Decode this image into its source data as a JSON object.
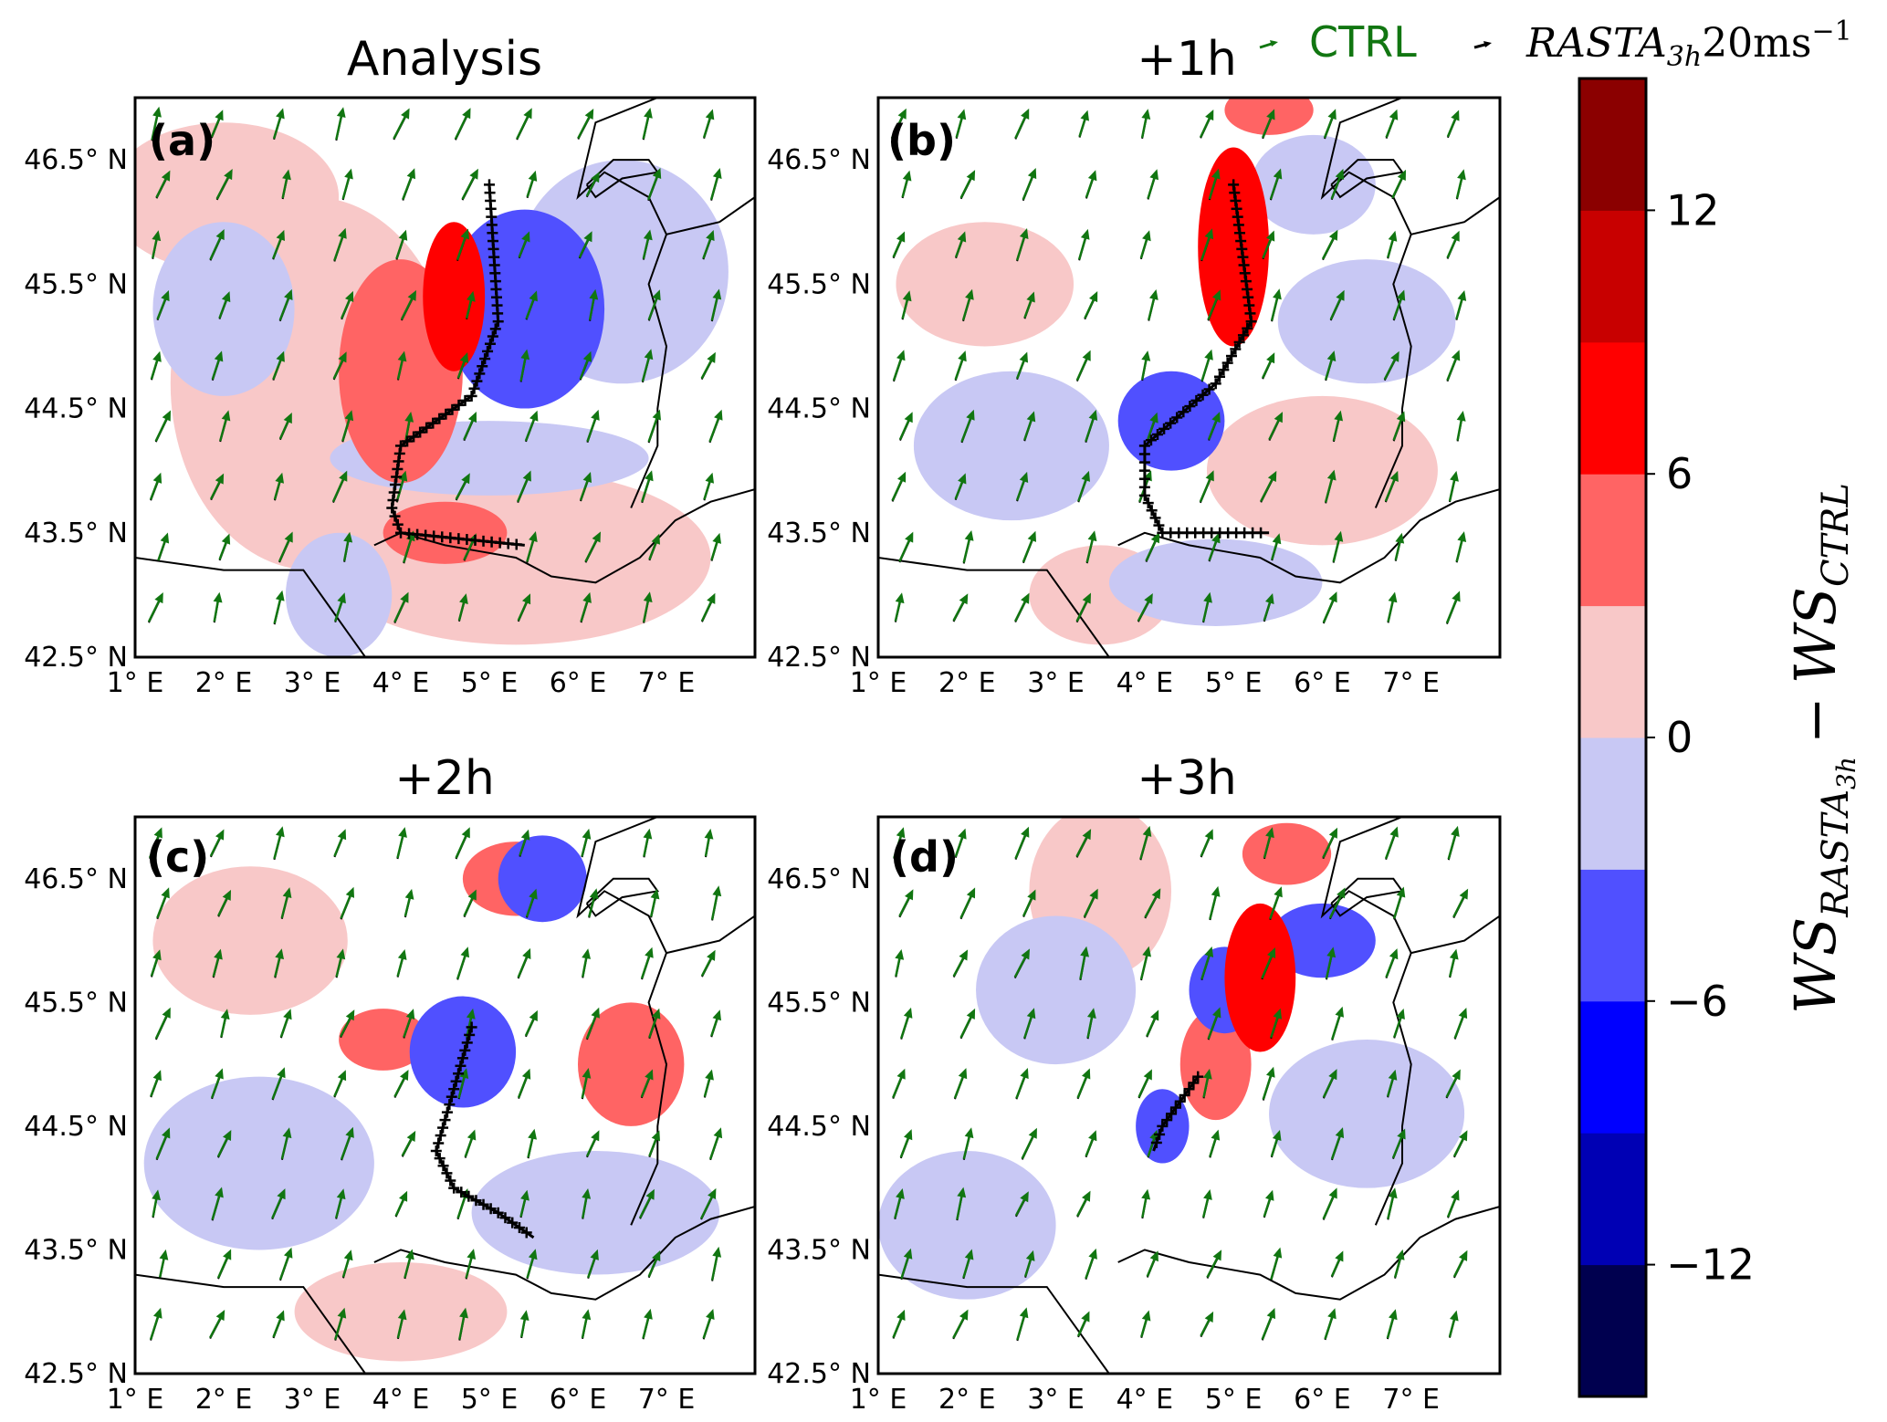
{
  "chart_data": [
    {
      "type": "heatmap",
      "panel_label": "(a)",
      "title": "Analysis",
      "map_extent": {
        "lon": [
          1,
          8
        ],
        "lat": [
          42.5,
          47
        ]
      },
      "field": "WS_RASTA3h - WS_CTRL",
      "regions": [
        {
          "lon": 3.0,
          "lat": 44.7,
          "rx": 1.6,
          "ry": 1.5,
          "value": 1.5
        },
        {
          "lon": 5.3,
          "lat": 43.3,
          "rx": 2.2,
          "ry": 0.7,
          "value": 1.5
        },
        {
          "lon": 2.0,
          "lat": 46.2,
          "rx": 1.3,
          "ry": 0.6,
          "value": 1.5
        },
        {
          "lon": 4.0,
          "lat": 44.8,
          "rx": 0.7,
          "ry": 0.9,
          "value": 4.5
        },
        {
          "lon": 4.5,
          "lat": 43.5,
          "rx": 0.7,
          "ry": 0.25,
          "value": 4.5
        },
        {
          "lon": 4.6,
          "lat": 45.4,
          "rx": 0.35,
          "ry": 0.6,
          "value": 7.5
        },
        {
          "lon": 5.4,
          "lat": 45.3,
          "rx": 0.9,
          "ry": 0.8,
          "value": -4.5
        },
        {
          "lon": 2.0,
          "lat": 45.3,
          "rx": 0.8,
          "ry": 0.7,
          "value": -1.5
        },
        {
          "lon": 5.0,
          "lat": 44.1,
          "rx": 1.8,
          "ry": 0.3,
          "value": -1.5
        },
        {
          "lon": 6.5,
          "lat": 45.6,
          "rx": 1.2,
          "ry": 0.9,
          "value": -1.5
        },
        {
          "lon": 3.3,
          "lat": 43.0,
          "rx": 0.6,
          "ry": 0.5,
          "value": -1.5
        }
      ],
      "track_lons": [
        5.0,
        5.1,
        4.8,
        4.0,
        3.9,
        4.0,
        5.4
      ],
      "track_lats": [
        46.3,
        45.2,
        44.6,
        44.2,
        43.7,
        43.5,
        43.4
      ]
    },
    {
      "type": "heatmap",
      "panel_label": "(b)",
      "title": "+1h",
      "map_extent": {
        "lon": [
          1,
          8
        ],
        "lat": [
          42.5,
          47
        ]
      },
      "field": "WS_RASTA3h - WS_CTRL",
      "regions": [
        {
          "lon": 2.2,
          "lat": 45.5,
          "rx": 1.0,
          "ry": 0.5,
          "value": 1.5
        },
        {
          "lon": 6.0,
          "lat": 44.0,
          "rx": 1.3,
          "ry": 0.6,
          "value": 1.5
        },
        {
          "lon": 3.5,
          "lat": 43.0,
          "rx": 0.8,
          "ry": 0.4,
          "value": 1.5
        },
        {
          "lon": 5.0,
          "lat": 45.8,
          "rx": 0.4,
          "ry": 0.8,
          "value": 7.5
        },
        {
          "lon": 5.4,
          "lat": 46.9,
          "rx": 0.5,
          "ry": 0.2,
          "value": 4.5
        },
        {
          "lon": 4.3,
          "lat": 44.4,
          "rx": 0.6,
          "ry": 0.4,
          "value": -4.5
        },
        {
          "lon": 5.9,
          "lat": 46.3,
          "rx": 0.7,
          "ry": 0.4,
          "value": -1.5
        },
        {
          "lon": 2.5,
          "lat": 44.2,
          "rx": 1.1,
          "ry": 0.6,
          "value": -1.5
        },
        {
          "lon": 6.5,
          "lat": 45.2,
          "rx": 1.0,
          "ry": 0.5,
          "value": -1.5
        },
        {
          "lon": 4.8,
          "lat": 43.1,
          "rx": 1.2,
          "ry": 0.35,
          "value": -1.5
        }
      ],
      "track_lons": [
        5.0,
        5.2,
        4.8,
        4.0,
        4.0,
        4.2,
        5.4
      ],
      "track_lats": [
        46.3,
        45.2,
        44.7,
        44.2,
        43.8,
        43.5,
        43.5
      ]
    },
    {
      "type": "heatmap",
      "panel_label": "(c)",
      "title": "+2h",
      "map_extent": {
        "lon": [
          1,
          8
        ],
        "lat": [
          42.5,
          47
        ]
      },
      "field": "WS_RASTA3h - WS_CTRL",
      "regions": [
        {
          "lon": 2.3,
          "lat": 46.0,
          "rx": 1.1,
          "ry": 0.6,
          "value": 1.5
        },
        {
          "lon": 6.6,
          "lat": 45.0,
          "rx": 0.6,
          "ry": 0.5,
          "value": 4.5
        },
        {
          "lon": 5.3,
          "lat": 46.5,
          "rx": 0.6,
          "ry": 0.3,
          "value": 4.5
        },
        {
          "lon": 3.8,
          "lat": 45.2,
          "rx": 0.5,
          "ry": 0.25,
          "value": 4.5
        },
        {
          "lon": 4.7,
          "lat": 45.1,
          "rx": 0.6,
          "ry": 0.45,
          "value": -4.5
        },
        {
          "lon": 5.6,
          "lat": 46.5,
          "rx": 0.5,
          "ry": 0.35,
          "value": -4.5
        },
        {
          "lon": 2.4,
          "lat": 44.2,
          "rx": 1.3,
          "ry": 0.7,
          "value": -1.5
        },
        {
          "lon": 6.2,
          "lat": 43.8,
          "rx": 1.4,
          "ry": 0.5,
          "value": -1.5
        },
        {
          "lon": 4.0,
          "lat": 43.0,
          "rx": 1.2,
          "ry": 0.4,
          "value": 1.5
        }
      ],
      "track_lons": [
        4.8,
        4.6,
        4.4,
        4.6,
        5.1,
        5.5
      ],
      "track_lats": [
        45.3,
        44.8,
        44.3,
        44.0,
        43.8,
        43.6
      ]
    },
    {
      "type": "heatmap",
      "panel_label": "(d)",
      "title": "+3h",
      "map_extent": {
        "lon": [
          1,
          8
        ],
        "lat": [
          42.5,
          47
        ]
      },
      "field": "WS_RASTA3h - WS_CTRL",
      "regions": [
        {
          "lon": 3.5,
          "lat": 46.4,
          "rx": 0.8,
          "ry": 0.7,
          "value": 1.5
        },
        {
          "lon": 5.3,
          "lat": 45.7,
          "rx": 0.4,
          "ry": 0.6,
          "value": 7.5
        },
        {
          "lon": 4.8,
          "lat": 45.0,
          "rx": 0.4,
          "ry": 0.45,
          "value": 4.5
        },
        {
          "lon": 5.6,
          "lat": 46.7,
          "rx": 0.5,
          "ry": 0.25,
          "value": 4.5
        },
        {
          "lon": 6.0,
          "lat": 46.0,
          "rx": 0.6,
          "ry": 0.3,
          "value": -4.5
        },
        {
          "lon": 4.9,
          "lat": 45.6,
          "rx": 0.4,
          "ry": 0.35,
          "value": -4.5
        },
        {
          "lon": 4.2,
          "lat": 44.5,
          "rx": 0.3,
          "ry": 0.3,
          "value": -4.5
        },
        {
          "lon": 2.0,
          "lat": 43.7,
          "rx": 1.0,
          "ry": 0.6,
          "value": -1.5
        },
        {
          "lon": 6.5,
          "lat": 44.6,
          "rx": 1.1,
          "ry": 0.6,
          "value": -1.5
        },
        {
          "lon": 3.0,
          "lat": 45.6,
          "rx": 0.9,
          "ry": 0.6,
          "value": -1.5
        }
      ],
      "track_lons": [
        4.6,
        4.4,
        4.2,
        4.1
      ],
      "track_lats": [
        44.9,
        44.7,
        44.5,
        44.3
      ]
    }
  ],
  "x_ticks": [
    "1° E",
    "2° E",
    "3° E",
    "4° E",
    "5° E",
    "6° E",
    "7° E"
  ],
  "y_ticks": [
    "42.5° N",
    "43.5° N",
    "44.5° N",
    "45.5° N",
    "46.5° N"
  ],
  "legend": {
    "ctrl_label": "CTRL",
    "rasta_label": "RASTA",
    "rasta_sub": "3h",
    "rasta_suffix": "20ms",
    "rasta_sup": "−1"
  },
  "colorbar": {
    "label_main": "WS",
    "label_sub1": "RASTA",
    "label_sub1b": "3h",
    "label_minus": "−",
    "label_sub2": "CTRL",
    "ticks": [
      "12",
      "6",
      "0",
      "−6",
      "−12"
    ],
    "levels": [
      -15,
      -12,
      -9,
      -6,
      -3,
      0,
      3,
      6,
      9,
      12,
      15
    ],
    "colors": [
      "#00004f",
      "#0000b4",
      "#0000ff",
      "#5050ff",
      "#c8c8f4",
      "#f8c8c8",
      "#ff6464",
      "#ff0000",
      "#c80000",
      "#8b0000"
    ]
  },
  "colors": {
    "ctrl_arrow": "#117611",
    "rasta_arrow": "#000000",
    "track": "#000000"
  }
}
